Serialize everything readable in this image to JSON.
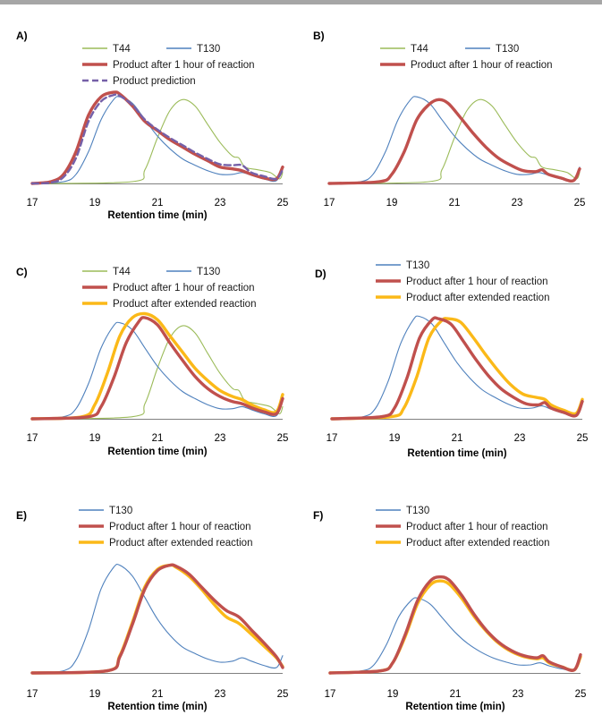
{
  "colors": {
    "T44": "#9bbb59",
    "T130": "#4f81bd",
    "product_1h": "#c0504d",
    "product_prediction": "#7560a8",
    "product_extended": "#fbb918"
  },
  "chart_data": [
    {
      "type": "line",
      "panel_label": "A)",
      "xlabel": "Retention time (min)",
      "x_ticks": [
        17,
        19,
        21,
        23,
        25
      ],
      "xlim": [
        17,
        25
      ],
      "ylim": [
        0,
        1.08
      ],
      "legend": [
        "T44",
        "T130",
        "Product after 1 hour of reaction",
        "Product prediction"
      ],
      "series": [
        {
          "name": "T44",
          "color_key": "T44",
          "x": [
            17,
            20.2,
            20.6,
            21.0,
            21.4,
            21.8,
            22.2,
            22.6,
            23.0,
            23.4,
            23.6,
            23.8,
            24.2,
            24.6,
            24.9,
            25.0
          ],
          "y": [
            0,
            0.02,
            0.15,
            0.5,
            0.8,
            0.92,
            0.85,
            0.65,
            0.45,
            0.3,
            0.28,
            0.18,
            0.15,
            0.12,
            0.05,
            0.12
          ]
        },
        {
          "name": "T130",
          "color_key": "T130",
          "x": [
            17,
            18.0,
            18.4,
            18.8,
            19.2,
            19.6,
            19.8,
            20.2,
            20.6,
            21.0,
            21.4,
            21.8,
            22.2,
            22.6,
            23.0,
            23.4,
            23.7,
            24.0,
            24.4,
            24.8,
            25.0
          ],
          "y": [
            0,
            0.02,
            0.1,
            0.35,
            0.7,
            0.92,
            0.95,
            0.88,
            0.7,
            0.52,
            0.38,
            0.27,
            0.2,
            0.14,
            0.1,
            0.1,
            0.12,
            0.09,
            0.05,
            0.03,
            0.18
          ]
        },
        {
          "name": "Product after 1 hour of reaction",
          "color_key": "product_1h",
          "x": [
            17,
            17.6,
            18.0,
            18.4,
            18.8,
            19.2,
            19.6,
            19.8,
            20.2,
            20.6,
            21.0,
            21.4,
            21.8,
            22.2,
            22.6,
            23.0,
            23.4,
            23.7,
            24.0,
            24.4,
            24.8,
            25.0
          ],
          "y": [
            0,
            0.02,
            0.1,
            0.35,
            0.75,
            0.95,
            1.0,
            0.98,
            0.85,
            0.68,
            0.58,
            0.48,
            0.4,
            0.32,
            0.25,
            0.18,
            0.16,
            0.14,
            0.1,
            0.06,
            0.05,
            0.18
          ]
        },
        {
          "name": "Product prediction",
          "color_key": "product_prediction",
          "dash": true,
          "x": [
            17,
            17.6,
            18.0,
            18.4,
            18.8,
            19.2,
            19.6,
            19.8,
            20.2,
            20.6,
            21.0,
            21.4,
            21.8,
            22.2,
            22.6,
            23.0,
            23.4,
            23.7,
            24.0,
            24.4,
            24.8,
            25.0
          ],
          "y": [
            0,
            0.01,
            0.07,
            0.28,
            0.68,
            0.9,
            0.97,
            0.96,
            0.86,
            0.7,
            0.59,
            0.5,
            0.42,
            0.34,
            0.27,
            0.21,
            0.2,
            0.2,
            0.12,
            0.08,
            0.05,
            0.15
          ]
        }
      ]
    },
    {
      "type": "line",
      "panel_label": "B)",
      "xlabel": "",
      "x_ticks": [
        17,
        19,
        21,
        23,
        25
      ],
      "xlim": [
        17,
        25
      ],
      "ylim": [
        0,
        1.08
      ],
      "legend": [
        "T44",
        "T130",
        "Product after 1 hour of reaction"
      ],
      "series": [
        {
          "name": "T44",
          "color_key": "T44",
          "x": [
            17,
            20.2,
            20.6,
            21.0,
            21.4,
            21.8,
            22.2,
            22.6,
            23.0,
            23.4,
            23.6,
            23.8,
            24.2,
            24.6,
            24.9,
            25.0
          ],
          "y": [
            0,
            0.02,
            0.15,
            0.5,
            0.8,
            0.92,
            0.85,
            0.65,
            0.45,
            0.3,
            0.28,
            0.18,
            0.15,
            0.12,
            0.05,
            0.12
          ]
        },
        {
          "name": "T130",
          "color_key": "T130",
          "x": [
            17,
            18.0,
            18.4,
            18.8,
            19.2,
            19.6,
            19.8,
            20.2,
            20.6,
            21.0,
            21.4,
            21.8,
            22.2,
            22.6,
            23.0,
            23.4,
            23.7,
            24.0,
            24.4,
            24.8,
            25.0
          ],
          "y": [
            0,
            0.02,
            0.1,
            0.35,
            0.7,
            0.92,
            0.95,
            0.88,
            0.7,
            0.52,
            0.38,
            0.27,
            0.2,
            0.14,
            0.1,
            0.1,
            0.12,
            0.09,
            0.05,
            0.03,
            0.18
          ]
        },
        {
          "name": "Product after 1 hour of reaction",
          "color_key": "product_1h",
          "x": [
            17,
            18.6,
            19.0,
            19.4,
            19.8,
            20.2,
            20.5,
            20.8,
            21.2,
            21.6,
            22.0,
            22.4,
            22.8,
            23.2,
            23.6,
            23.8,
            24.0,
            24.4,
            24.8,
            25.0
          ],
          "y": [
            0,
            0.02,
            0.1,
            0.35,
            0.7,
            0.87,
            0.92,
            0.88,
            0.72,
            0.55,
            0.4,
            0.28,
            0.2,
            0.14,
            0.13,
            0.15,
            0.1,
            0.06,
            0.03,
            0.16
          ]
        }
      ]
    },
    {
      "type": "line",
      "panel_label": "C)",
      "xlabel": "Retention time (min)",
      "x_ticks": [
        17,
        19,
        21,
        23,
        25
      ],
      "xlim": [
        17,
        25
      ],
      "ylim": [
        0,
        1.08
      ],
      "legend": [
        "T44",
        "T130",
        "Product after 1 hour of reaction",
        "Product after extended reaction"
      ],
      "series": [
        {
          "name": "T44",
          "color_key": "T44",
          "x": [
            17,
            20.2,
            20.6,
            21.0,
            21.4,
            21.8,
            22.2,
            22.6,
            23.0,
            23.4,
            23.6,
            23.8,
            24.2,
            24.6,
            24.9,
            25.0
          ],
          "y": [
            0,
            0.02,
            0.15,
            0.5,
            0.8,
            0.92,
            0.85,
            0.65,
            0.45,
            0.3,
            0.28,
            0.18,
            0.15,
            0.12,
            0.05,
            0.12
          ]
        },
        {
          "name": "T130",
          "color_key": "T130",
          "x": [
            17,
            18.0,
            18.4,
            18.8,
            19.2,
            19.6,
            19.8,
            20.2,
            20.6,
            21.0,
            21.4,
            21.8,
            22.2,
            22.6,
            23.0,
            23.4,
            23.7,
            24.0,
            24.4,
            24.8,
            25.0
          ],
          "y": [
            0,
            0.02,
            0.1,
            0.35,
            0.7,
            0.92,
            0.95,
            0.88,
            0.7,
            0.52,
            0.38,
            0.27,
            0.2,
            0.14,
            0.1,
            0.1,
            0.12,
            0.09,
            0.05,
            0.03,
            0.18
          ]
        },
        {
          "name": "Product after 1 hour of reaction",
          "color_key": "product_1h",
          "x": [
            17,
            18.8,
            19.2,
            19.6,
            20.0,
            20.4,
            20.6,
            21.0,
            21.4,
            21.8,
            22.2,
            22.6,
            23.0,
            23.4,
            23.7,
            24.0,
            24.4,
            24.8,
            25.0
          ],
          "y": [
            0,
            0.02,
            0.12,
            0.4,
            0.75,
            0.96,
            1.0,
            0.93,
            0.75,
            0.58,
            0.42,
            0.3,
            0.22,
            0.17,
            0.15,
            0.11,
            0.07,
            0.05,
            0.2
          ]
        },
        {
          "name": "Product after extended reaction",
          "color_key": "product_extended",
          "x": [
            17,
            18.6,
            19.0,
            19.4,
            19.8,
            20.2,
            20.6,
            21.0,
            21.4,
            21.8,
            22.2,
            22.6,
            23.0,
            23.4,
            23.7,
            24.0,
            24.4,
            24.8,
            25.0
          ],
          "y": [
            0,
            0.02,
            0.14,
            0.45,
            0.82,
            1.0,
            1.04,
            0.98,
            0.82,
            0.66,
            0.5,
            0.38,
            0.28,
            0.22,
            0.19,
            0.14,
            0.09,
            0.07,
            0.24
          ]
        }
      ]
    },
    {
      "type": "line",
      "panel_label": "D)",
      "xlabel": "Retention time (min)",
      "x_ticks": [
        17,
        19,
        21,
        23,
        25
      ],
      "xlim": [
        17,
        25
      ],
      "ylim": [
        0,
        1.08
      ],
      "legend": [
        "T130",
        "Product after 1 hour of reaction",
        "Product after extended reaction"
      ],
      "series": [
        {
          "name": "T130",
          "color_key": "T130",
          "x": [
            17,
            18.0,
            18.4,
            18.8,
            19.2,
            19.6,
            19.8,
            20.2,
            20.6,
            21.0,
            21.4,
            21.8,
            22.2,
            22.6,
            23.0,
            23.4,
            23.7,
            24.0,
            24.4,
            24.8,
            25.0
          ],
          "y": [
            0,
            0.02,
            0.1,
            0.35,
            0.7,
            0.92,
            0.95,
            0.88,
            0.7,
            0.52,
            0.38,
            0.27,
            0.2,
            0.14,
            0.1,
            0.1,
            0.12,
            0.09,
            0.05,
            0.03,
            0.18
          ]
        },
        {
          "name": "Product after 1 hour of reaction",
          "color_key": "product_1h",
          "x": [
            17,
            18.6,
            19.0,
            19.4,
            19.8,
            20.2,
            20.4,
            20.8,
            21.2,
            21.6,
            22.0,
            22.4,
            22.8,
            23.2,
            23.6,
            23.8,
            24.0,
            24.4,
            24.8,
            25.0
          ],
          "y": [
            0,
            0.02,
            0.1,
            0.38,
            0.75,
            0.92,
            0.93,
            0.88,
            0.72,
            0.55,
            0.4,
            0.28,
            0.2,
            0.14,
            0.13,
            0.15,
            0.1,
            0.06,
            0.03,
            0.16
          ]
        },
        {
          "name": "Product after extended reaction",
          "color_key": "product_extended",
          "x": [
            17,
            18.9,
            19.3,
            19.7,
            20.1,
            20.5,
            20.7,
            21.1,
            21.5,
            21.9,
            22.3,
            22.7,
            23.1,
            23.5,
            23.8,
            24.0,
            24.4,
            24.8,
            25.0
          ],
          "y": [
            0,
            0.02,
            0.1,
            0.38,
            0.75,
            0.91,
            0.93,
            0.9,
            0.76,
            0.6,
            0.45,
            0.32,
            0.23,
            0.2,
            0.18,
            0.13,
            0.08,
            0.05,
            0.18
          ]
        }
      ]
    },
    {
      "type": "line",
      "panel_label": "E)",
      "xlabel": "Retention time (min)",
      "x_ticks": [
        17,
        19,
        21,
        23,
        25
      ],
      "xlim": [
        17,
        25
      ],
      "ylim": [
        0,
        1.08
      ],
      "legend": [
        "T130",
        "Product after 1 hour of reaction",
        "Product after extended reaction"
      ],
      "series": [
        {
          "name": "T130",
          "color_key": "T130",
          "x": [
            17,
            18.0,
            18.4,
            18.8,
            19.2,
            19.6,
            19.8,
            20.2,
            20.6,
            21.0,
            21.4,
            21.8,
            22.2,
            22.6,
            23.0,
            23.4,
            23.7,
            24.0,
            24.4,
            24.8,
            25.0
          ],
          "y": [
            0,
            0.02,
            0.12,
            0.4,
            0.78,
            0.98,
            1.0,
            0.9,
            0.7,
            0.5,
            0.35,
            0.24,
            0.18,
            0.13,
            0.1,
            0.11,
            0.14,
            0.11,
            0.07,
            0.05,
            0.16
          ]
        },
        {
          "name": "Product after 1 hour of reaction",
          "color_key": "product_1h",
          "x": [
            17,
            19.4,
            19.8,
            20.2,
            20.6,
            21.0,
            21.4,
            21.6,
            22.0,
            22.4,
            22.8,
            23.2,
            23.6,
            24.0,
            24.4,
            24.8,
            25.0
          ],
          "y": [
            0,
            0.02,
            0.15,
            0.45,
            0.78,
            0.95,
            1.0,
            0.99,
            0.92,
            0.8,
            0.68,
            0.58,
            0.52,
            0.4,
            0.28,
            0.15,
            0.05
          ]
        },
        {
          "name": "Product after extended reaction",
          "color_key": "product_extended",
          "x": [
            17,
            19.4,
            19.8,
            20.2,
            20.6,
            21.0,
            21.4,
            21.6,
            22.0,
            22.4,
            22.8,
            23.2,
            23.6,
            24.0,
            24.4,
            24.8,
            25.0
          ],
          "y": [
            0,
            0.02,
            0.16,
            0.47,
            0.8,
            0.96,
            1.0,
            0.98,
            0.9,
            0.78,
            0.64,
            0.52,
            0.46,
            0.36,
            0.25,
            0.14,
            0.06
          ]
        }
      ]
    },
    {
      "type": "line",
      "panel_label": "F)",
      "xlabel": "Retention time (min)",
      "x_ticks": [
        17,
        19,
        21,
        23,
        25
      ],
      "xlim": [
        17,
        25
      ],
      "ylim": [
        0,
        1.08
      ],
      "legend": [
        "T130",
        "Product after 1 hour of reaction",
        "Product after extended reaction"
      ],
      "series": [
        {
          "name": "T130",
          "color_key": "T130",
          "x": [
            17,
            18.0,
            18.4,
            18.8,
            19.2,
            19.6,
            19.8,
            20.2,
            20.6,
            21.0,
            21.4,
            21.8,
            22.2,
            22.6,
            23.0,
            23.4,
            23.7,
            24.0,
            24.4,
            24.8,
            25.0
          ],
          "y": [
            0,
            0.02,
            0.08,
            0.28,
            0.56,
            0.72,
            0.74,
            0.68,
            0.54,
            0.4,
            0.29,
            0.21,
            0.15,
            0.11,
            0.08,
            0.08,
            0.1,
            0.07,
            0.04,
            0.03,
            0.14
          ]
        },
        {
          "name": "Product after 1 hour of reaction",
          "color_key": "product_1h",
          "x": [
            17,
            18.6,
            19.0,
            19.4,
            19.8,
            20.2,
            20.5,
            20.8,
            21.2,
            21.6,
            22.0,
            22.4,
            22.8,
            23.2,
            23.6,
            23.8,
            24.0,
            24.4,
            24.8,
            25.0
          ],
          "y": [
            0,
            0.02,
            0.1,
            0.38,
            0.72,
            0.91,
            0.95,
            0.92,
            0.77,
            0.58,
            0.42,
            0.3,
            0.22,
            0.17,
            0.15,
            0.17,
            0.11,
            0.06,
            0.03,
            0.18
          ]
        },
        {
          "name": "Product after extended reaction",
          "color_key": "product_extended",
          "x": [
            17,
            18.6,
            19.0,
            19.4,
            19.8,
            20.2,
            20.5,
            20.8,
            21.2,
            21.6,
            22.0,
            22.4,
            22.8,
            23.2,
            23.6,
            23.8,
            24.0,
            24.4,
            24.8,
            25.0
          ],
          "y": [
            0,
            0.02,
            0.1,
            0.36,
            0.69,
            0.87,
            0.91,
            0.88,
            0.74,
            0.56,
            0.41,
            0.29,
            0.21,
            0.16,
            0.14,
            0.15,
            0.1,
            0.06,
            0.03,
            0.16
          ]
        }
      ]
    }
  ]
}
